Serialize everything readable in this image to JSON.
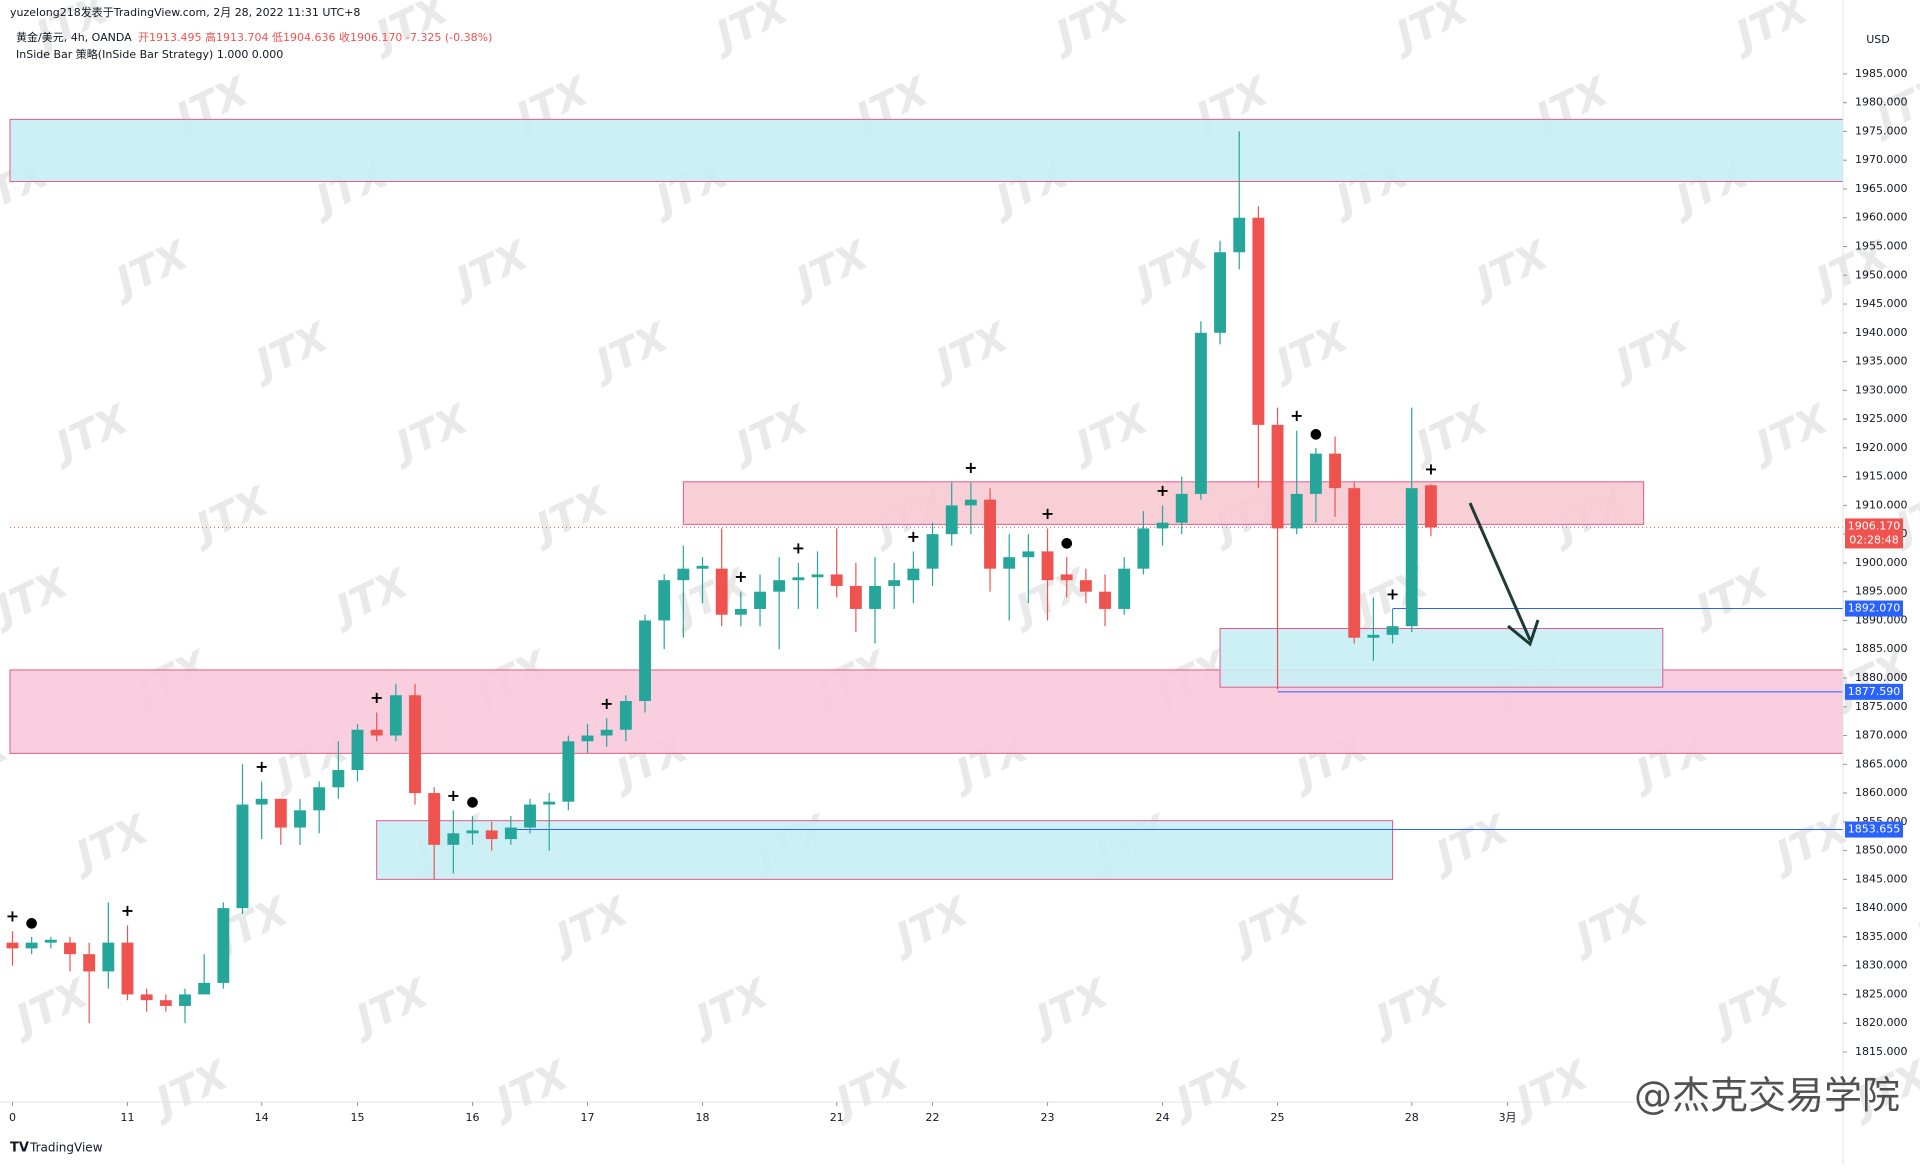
{
  "chart_data": {
    "type": "candlestick",
    "author_line": "yuzelong218发表于TradingView.com, 2月 28, 2022 11:31 UTC+8",
    "symbol_line": "黄金/美元, 4h, OANDA",
    "ohlc_text": "开1913.495 高1913.704 低1904.636 收1906.170 -7.325 (-0.38%)",
    "indicator_line": "InSide Bar 策略(InSide Bar Strategy) 1.000 0.000",
    "currency": "USD",
    "brand": "TradingView",
    "watermark": "JTX",
    "credit": "@杰克交易学院",
    "up_color": "#26a69a",
    "down_color": "#ef5350",
    "ohlc": [
      [
        1834,
        1836,
        1830,
        1833
      ],
      [
        1833,
        1835,
        1832,
        1834
      ],
      [
        1834,
        1835,
        1833,
        1834.5
      ],
      [
        1834,
        1835,
        1829,
        1832
      ],
      [
        1832,
        1834,
        1820,
        1829
      ],
      [
        1829,
        1841,
        1826,
        1834
      ],
      [
        1834,
        1837,
        1824,
        1825
      ],
      [
        1825,
        1826,
        1822,
        1824
      ],
      [
        1824,
        1825,
        1822,
        1823
      ],
      [
        1823,
        1826,
        1820,
        1825
      ],
      [
        1825,
        1832,
        1825,
        1827
      ],
      [
        1827,
        1841,
        1826,
        1840
      ],
      [
        1840,
        1865,
        1839,
        1858
      ],
      [
        1858,
        1862,
        1852,
        1859
      ],
      [
        1859,
        1859,
        1851,
        1854
      ],
      [
        1854,
        1859,
        1851,
        1857
      ],
      [
        1857,
        1862,
        1853,
        1861
      ],
      [
        1861,
        1869,
        1859,
        1864
      ],
      [
        1864,
        1872,
        1862,
        1871
      ],
      [
        1871,
        1874,
        1869,
        1870
      ],
      [
        1870,
        1879,
        1869,
        1877
      ],
      [
        1877,
        1879,
        1858,
        1860
      ],
      [
        1860,
        1861,
        1845,
        1851
      ],
      [
        1851,
        1857,
        1846,
        1853
      ],
      [
        1853,
        1856,
        1851,
        1853.5
      ],
      [
        1853.5,
        1855,
        1850,
        1852
      ],
      [
        1852,
        1856,
        1851,
        1854
      ],
      [
        1854,
        1859,
        1853,
        1858
      ],
      [
        1858,
        1860,
        1850,
        1858.5
      ],
      [
        1858.5,
        1870,
        1857,
        1869
      ],
      [
        1869,
        1872,
        1867,
        1870
      ],
      [
        1870,
        1873,
        1868,
        1871
      ],
      [
        1871,
        1877,
        1869,
        1876
      ],
      [
        1876,
        1891,
        1874,
        1890
      ],
      [
        1890,
        1898,
        1885,
        1897
      ],
      [
        1897,
        1903,
        1887,
        1899
      ],
      [
        1899,
        1901,
        1893,
        1899.5
      ],
      [
        1899,
        1906,
        1889,
        1891
      ],
      [
        1891,
        1895,
        1889,
        1892
      ],
      [
        1892,
        1898,
        1889,
        1895
      ],
      [
        1895,
        1901,
        1885,
        1897
      ],
      [
        1897,
        1900,
        1892,
        1897.5
      ],
      [
        1897.5,
        1902,
        1892,
        1898
      ],
      [
        1898,
        1906,
        1894,
        1896
      ],
      [
        1896,
        1900,
        1888,
        1892
      ],
      [
        1892,
        1901,
        1886,
        1896
      ],
      [
        1896,
        1900,
        1892,
        1897
      ],
      [
        1897,
        1902,
        1893,
        1899
      ],
      [
        1899,
        1907,
        1896,
        1905
      ],
      [
        1905,
        1914,
        1903,
        1910
      ],
      [
        1910,
        1914,
        1905,
        1911
      ],
      [
        1911,
        1913,
        1895,
        1899
      ],
      [
        1899,
        1905,
        1890,
        1901
      ],
      [
        1901,
        1905,
        1893,
        1902
      ],
      [
        1902,
        1906,
        1890,
        1897
      ],
      [
        1898,
        1901,
        1894,
        1897
      ],
      [
        1897,
        1899,
        1893,
        1895
      ],
      [
        1895,
        1898,
        1889,
        1892
      ],
      [
        1892,
        1901,
        1891,
        1899
      ],
      [
        1899,
        1909,
        1898,
        1906
      ],
      [
        1906,
        1910,
        1903,
        1907
      ],
      [
        1907,
        1915,
        1905,
        1912
      ],
      [
        1912,
        1942,
        1911,
        1940
      ],
      [
        1940,
        1956,
        1938,
        1954
      ],
      [
        1954,
        1975,
        1951,
        1960
      ],
      [
        1960,
        1962,
        1913,
        1924
      ],
      [
        1924,
        1927,
        1878,
        1906
      ],
      [
        1906,
        1923,
        1905,
        1912
      ],
      [
        1912,
        1920,
        1907,
        1919
      ],
      [
        1919,
        1922,
        1908,
        1913
      ],
      [
        1913,
        1914,
        1886,
        1887
      ],
      [
        1887,
        1894,
        1883,
        1887.5
      ],
      [
        1887.5,
        1892,
        1886,
        1889
      ],
      [
        1889,
        1927,
        1888,
        1913
      ],
      [
        1913.495,
        1913.704,
        1904.636,
        1906.17
      ]
    ],
    "xlim": [
      -0.13,
      95.5
    ],
    "xticks": [
      {
        "value": 0,
        "label": "0"
      },
      {
        "value": 6,
        "label": "11"
      },
      {
        "value": 13,
        "label": "14"
      },
      {
        "value": 18,
        "label": "15"
      },
      {
        "value": 24,
        "label": "16"
      },
      {
        "value": 30,
        "label": "17"
      },
      {
        "value": 36,
        "label": "18"
      },
      {
        "value": 43,
        "label": "21"
      },
      {
        "value": 48,
        "label": "22"
      },
      {
        "value": 54,
        "label": "23"
      },
      {
        "value": 60,
        "label": "24"
      },
      {
        "value": 66,
        "label": "25"
      },
      {
        "value": 73,
        "label": "28"
      },
      {
        "value": 78,
        "label": "3月"
      }
    ],
    "ylim": [
      1806.3,
      1993.5
    ],
    "yticks": [
      {
        "value": 1815,
        "label": "1815.000"
      },
      {
        "value": 1820,
        "label": "1820.000"
      },
      {
        "value": 1825,
        "label": "1825.000"
      },
      {
        "value": 1830,
        "label": "1830.000"
      },
      {
        "value": 1835,
        "label": "1835.000"
      },
      {
        "value": 1840,
        "label": "1840.000"
      },
      {
        "value": 1845,
        "label": "1845.000"
      },
      {
        "value": 1850,
        "label": "1850.000"
      },
      {
        "value": 1855,
        "label": "1855.000"
      },
      {
        "value": 1860,
        "label": "1860.000"
      },
      {
        "value": 1865,
        "label": "1865.000"
      },
      {
        "value": 1870,
        "label": "1870.000"
      },
      {
        "value": 1875,
        "label": "1875.000"
      },
      {
        "value": 1880,
        "label": "1880.000"
      },
      {
        "value": 1885,
        "label": "1885.000"
      },
      {
        "value": 1890,
        "label": "1890.000"
      },
      {
        "value": 1895,
        "label": "1895.000"
      },
      {
        "value": 1900,
        "label": "1900.000"
      },
      {
        "value": 1905,
        "label": "1905.000"
      },
      {
        "value": 1910,
        "label": "1910.000"
      },
      {
        "value": 1915,
        "label": "1915.000"
      },
      {
        "value": 1920,
        "label": "1920.000"
      },
      {
        "value": 1925,
        "label": "1925.000"
      },
      {
        "value": 1930,
        "label": "1930.000"
      },
      {
        "value": 1935,
        "label": "1935.000"
      },
      {
        "value": 1940,
        "label": "1940.000"
      },
      {
        "value": 1945,
        "label": "1945.000"
      },
      {
        "value": 1950,
        "label": "1950.000"
      },
      {
        "value": 1955,
        "label": "1955.000"
      },
      {
        "value": 1960,
        "label": "1960.000"
      },
      {
        "value": 1965,
        "label": "1965.000"
      },
      {
        "value": 1970,
        "label": "1970.000"
      },
      {
        "value": 1975,
        "label": "1975.000"
      },
      {
        "value": 1980,
        "label": "1980.000"
      },
      {
        "value": 1985,
        "label": "1985.000"
      }
    ],
    "zones": [
      {
        "y0": 1966.3,
        "y1": 1977.1,
        "full_width": true,
        "color": "#c8eef5"
      },
      {
        "y0": 1866.9,
        "y1": 1881.4,
        "full_width": true,
        "color": "#f8cadb"
      },
      {
        "x0": 35.0,
        "x1": 85.1,
        "y0": 1906.7,
        "y1": 1914.1,
        "color": "#f8cad3"
      },
      {
        "x0": 63.0,
        "x1": 86.1,
        "y0": 1878.4,
        "y1": 1888.6,
        "color": "#c8eef5"
      },
      {
        "x0": 19.0,
        "x1": 72.0,
        "y0": 1845.0,
        "y1": 1855.2,
        "color": "#c8eef5"
      }
    ],
    "levels": [
      {
        "value": 1892.07,
        "label": "1892.070",
        "from": 72
      },
      {
        "value": 1877.59,
        "label": "1877.590",
        "from": 66
      },
      {
        "value": 1853.655,
        "label": "1853.655",
        "from": 26
      }
    ],
    "last_price": {
      "value": 1906.17,
      "label": "1906.170",
      "countdown": "02:28:48"
    },
    "signals": [
      {
        "index": 0,
        "symbol": "+"
      },
      {
        "index": 1,
        "symbol": "●"
      },
      {
        "index": 6,
        "symbol": "+"
      },
      {
        "index": 13,
        "symbol": "+"
      },
      {
        "index": 19,
        "symbol": "+"
      },
      {
        "index": 23,
        "symbol": "+"
      },
      {
        "index": 24,
        "symbol": "●"
      },
      {
        "index": 31,
        "symbol": "+"
      },
      {
        "index": 38,
        "symbol": "+"
      },
      {
        "index": 41,
        "symbol": "+"
      },
      {
        "index": 47,
        "symbol": "+"
      },
      {
        "index": 50,
        "symbol": "+"
      },
      {
        "index": 54,
        "symbol": "+"
      },
      {
        "index": 55,
        "symbol": "●"
      },
      {
        "index": 60,
        "symbol": "+"
      },
      {
        "index": 67,
        "symbol": "+"
      },
      {
        "index": 68,
        "symbol": "●"
      },
      {
        "index": 72,
        "symbol": "+"
      },
      {
        "index": 74,
        "symbol": "+"
      }
    ]
  }
}
